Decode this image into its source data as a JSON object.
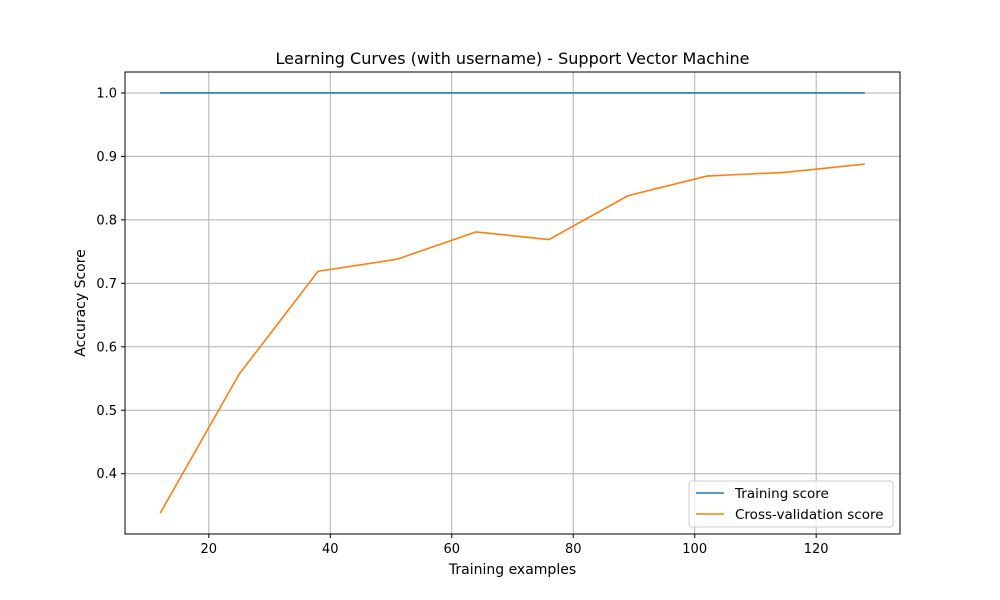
{
  "chart_data": {
    "type": "line",
    "title": "Learning Curves (with username) - Support Vector Machine",
    "xlabel": "Training examples",
    "ylabel": "Accuracy Score",
    "xlim": [
      6.2,
      133.8
    ],
    "ylim": [
      0.305,
      1.033
    ],
    "xticks": [
      20,
      40,
      60,
      80,
      100,
      120
    ],
    "yticks": [
      0.4,
      0.5,
      0.6,
      0.7,
      0.8,
      0.9,
      1.0
    ],
    "xtick_labels": [
      "20",
      "40",
      "60",
      "80",
      "100",
      "120"
    ],
    "ytick_labels": [
      "0.4",
      "0.5",
      "0.6",
      "0.7",
      "0.8",
      "0.9",
      "1.0"
    ],
    "grid": true,
    "legend_position": "lower-right",
    "x": [
      12,
      25,
      38,
      51,
      64,
      76,
      89,
      102,
      115,
      128
    ],
    "series": [
      {
        "name": "Training score",
        "color": "#1f77b4",
        "values": [
          1.0,
          1.0,
          1.0,
          1.0,
          1.0,
          1.0,
          1.0,
          1.0,
          1.0,
          1.0
        ]
      },
      {
        "name": "Cross-validation score",
        "color": "#ff7f0e",
        "values": [
          0.338,
          0.557,
          0.719,
          0.738,
          0.781,
          0.769,
          0.838,
          0.869,
          0.875,
          0.888
        ]
      }
    ]
  }
}
